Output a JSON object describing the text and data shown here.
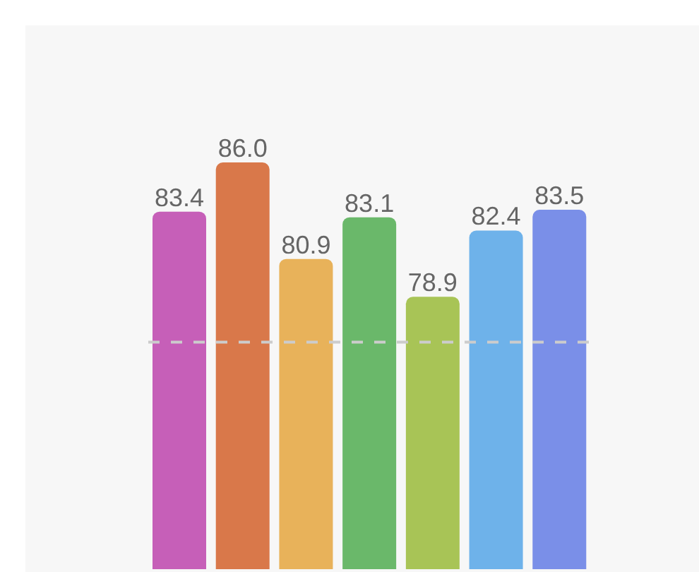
{
  "chart_data": {
    "type": "bar",
    "categories": [
      null,
      null,
      null,
      null,
      null,
      null,
      null
    ],
    "values": [
      83.4,
      86.0,
      80.9,
      83.1,
      78.9,
      82.4,
      83.5
    ],
    "value_labels": [
      "83.4",
      "86.0",
      "80.9",
      "83.1",
      "78.9",
      "82.4",
      "83.5"
    ],
    "colors": [
      "#c65fb8",
      "#d9784a",
      "#e8b25a",
      "#6ab86a",
      "#a8c456",
      "#6eb2ea",
      "#7a8fe8"
    ],
    "ylim": [
      64.5,
      86.0
    ],
    "ref_lines": [
      {
        "axis": "y",
        "value": 76.5,
        "color": "#cccccc",
        "line_style": "dashed"
      }
    ]
  }
}
